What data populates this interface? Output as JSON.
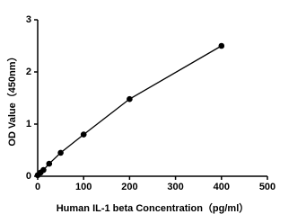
{
  "chart_data": {
    "type": "line",
    "markers": true,
    "xlabel": "Human IL-1 beta  Concentration（pg/ml）",
    "ylabel": "OD Value（450nm）",
    "x": [
      0,
      6.25,
      12.5,
      25,
      50,
      100,
      200,
      400
    ],
    "series": [
      {
        "color": "#000000",
        "values": [
          0.02,
          0.07,
          0.12,
          0.24,
          0.45,
          0.8,
          1.48,
          2.5
        ]
      }
    ],
    "xlim": [
      0,
      500
    ],
    "xticks": [
      0,
      100,
      200,
      300,
      400,
      500
    ],
    "ylim": [
      0,
      3
    ],
    "yticks": [
      0,
      1,
      2,
      3
    ]
  }
}
